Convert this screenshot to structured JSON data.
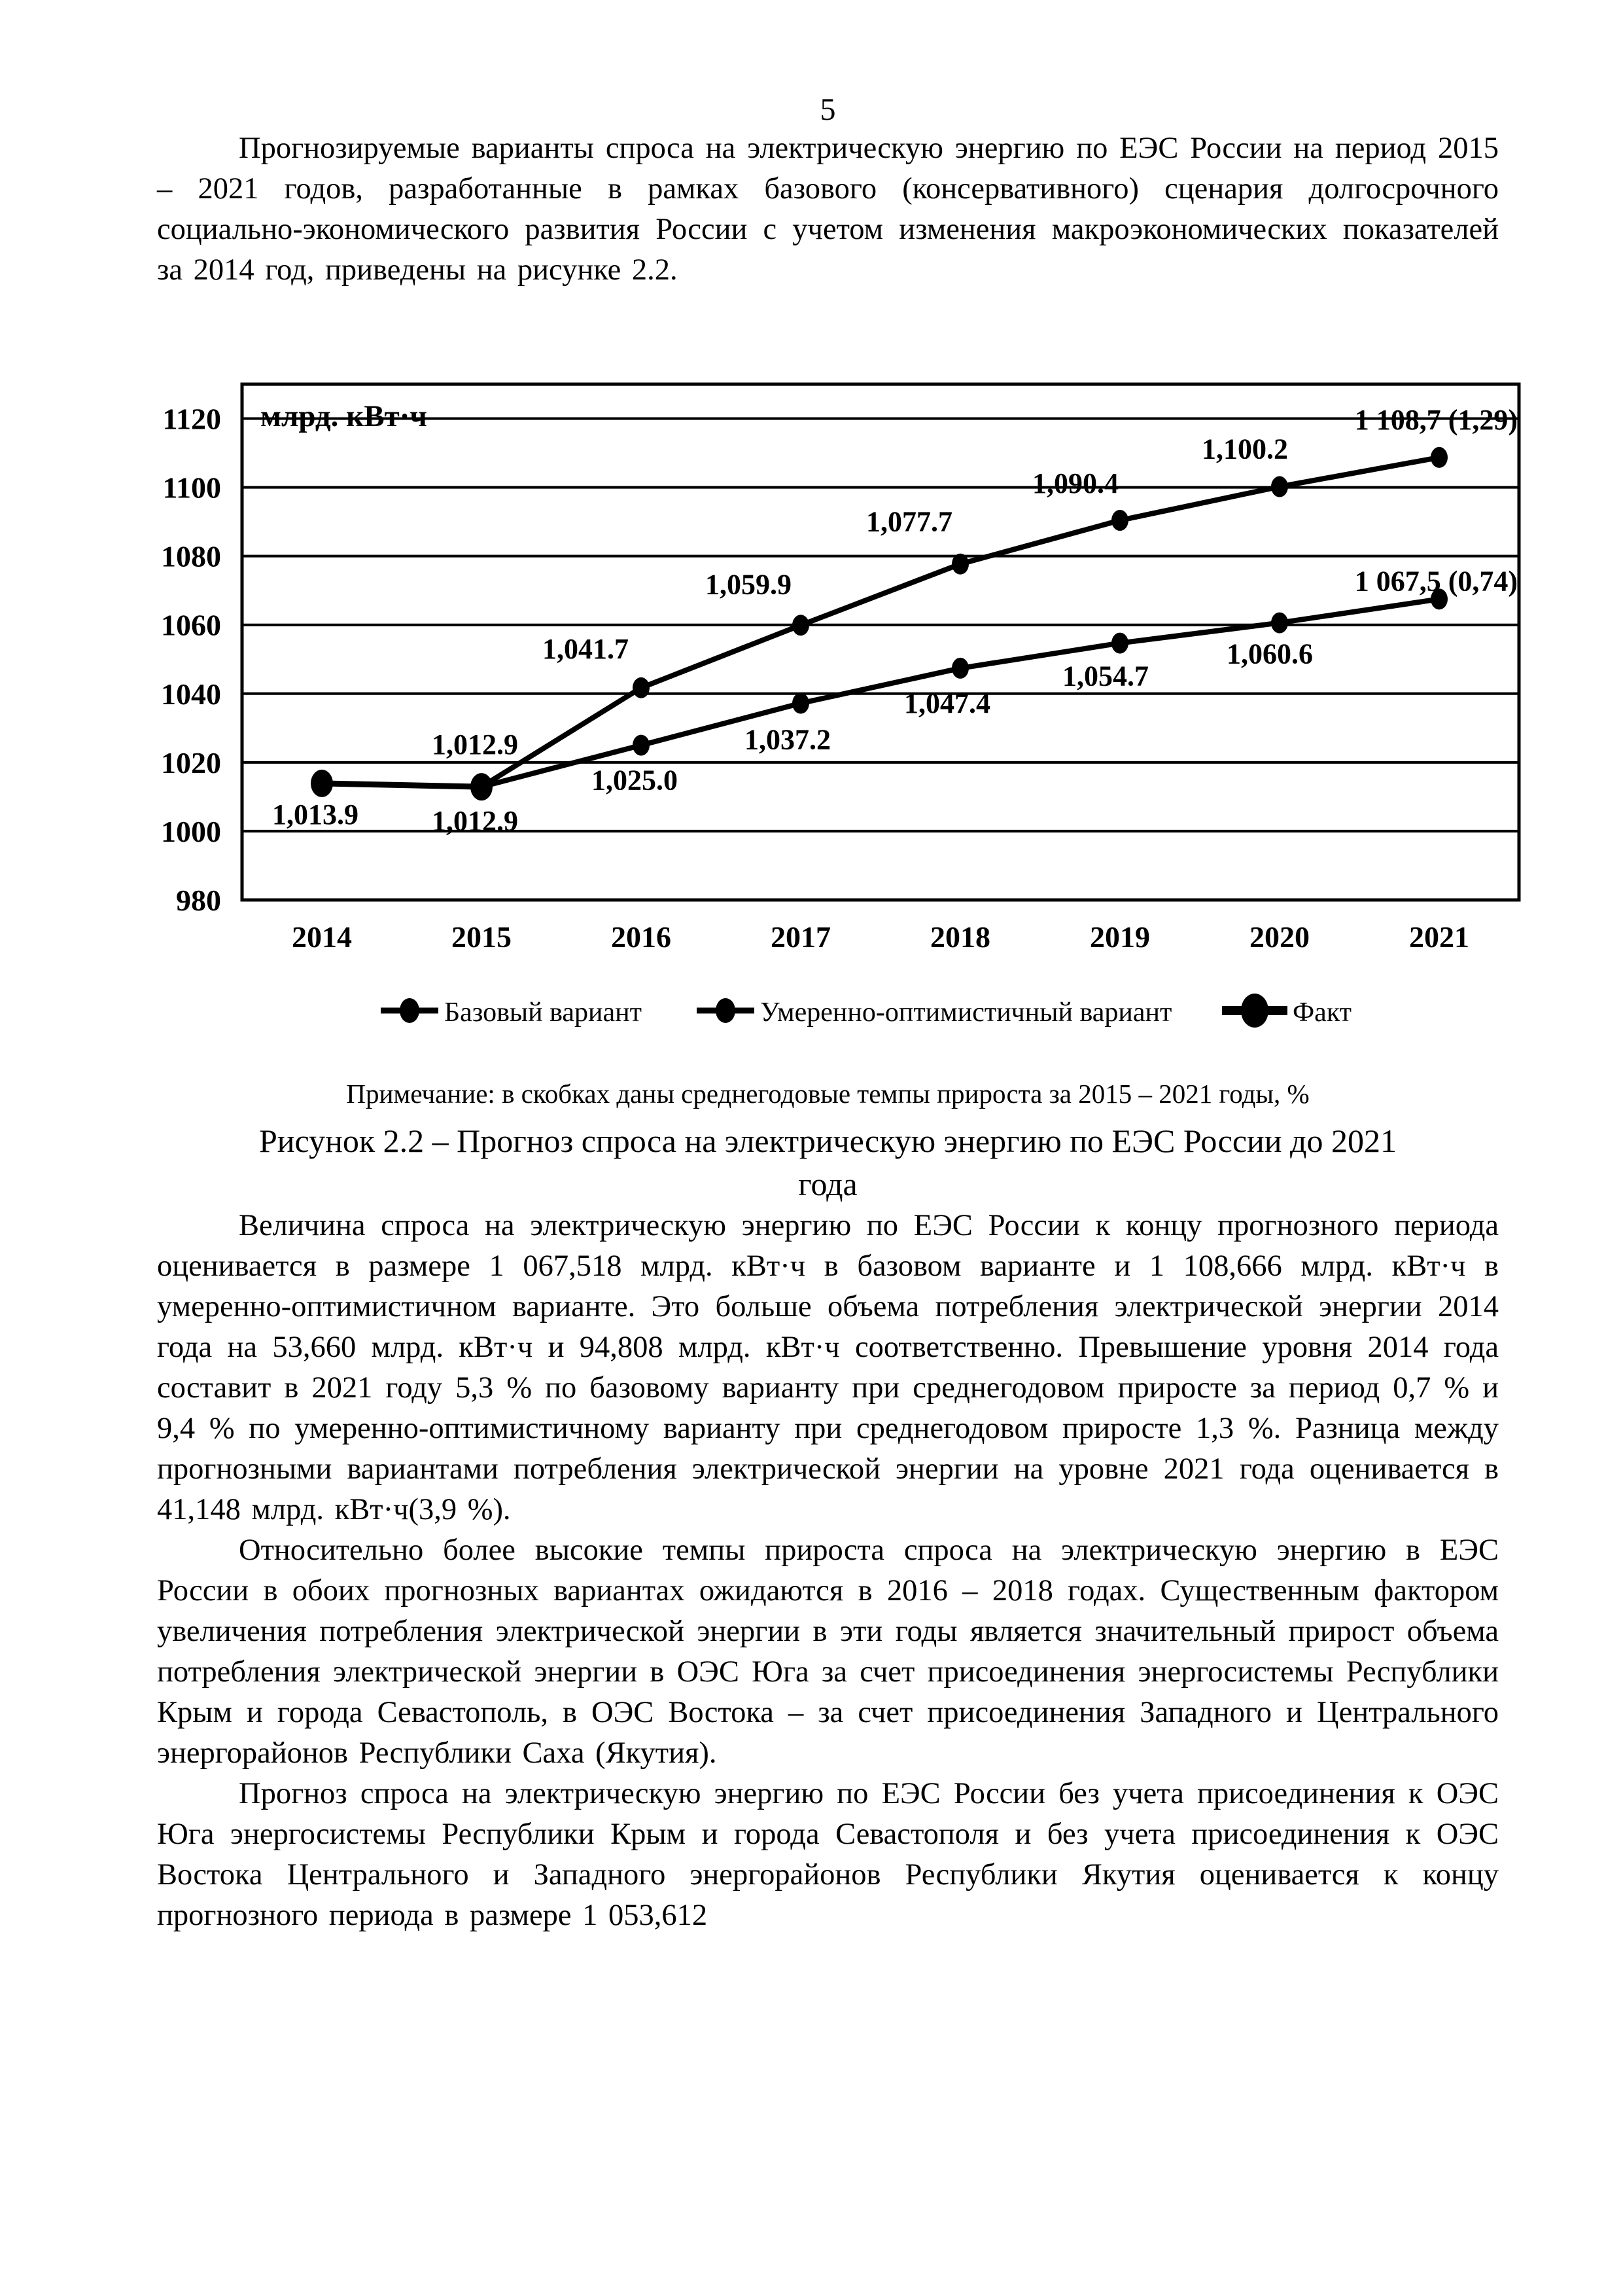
{
  "page": {
    "number": "5"
  },
  "paragraphs": {
    "p1": "Прогнозируемые варианты спроса на электрическую энергию по ЕЭС России на период 2015 – 2021 годов, разработанные в рамках базового (консервативного) сценария долгосрочного социально-экономического развития России с учетом изменения макроэкономических показателей за 2014 год, приведены на рисунке 2.2.",
    "p2": "Величина спроса на электрическую энергию по ЕЭС России к концу прогнозного периода оценивается в размере 1 067,518 млрд. кВт·ч в базовом варианте и 1 108,666 млрд. кВт·ч в умеренно-оптимистичном варианте. Это больше объема потребления электрической энергии 2014 года на 53,660 млрд. кВт·ч и 94,808 млрд. кВт·ч соответственно. Превышение уровня 2014 года составит в 2021 году 5,3 % по базовому варианту при среднегодовом приросте за период 0,7 % и 9,4 % по умеренно-оптимистичному варианту при среднегодовом приросте 1,3 %. Разница между прогнозными вариантами потребления электрической энергии на уровне 2021 года оценивается в 41,148 млрд. кВт·ч(3,9 %).",
    "p3": "Относительно более высокие темпы прироста спроса на электрическую энергию в ЕЭС России в обоих прогнозных вариантах ожидаются в 2016 – 2018 годах. Существенным фактором увеличения потребления электрической энергии в эти годы является значительный прирост объема потребления электрической энергии в ОЭС Юга за счет присоединения энергосистемы Республики Крым и города Севастополь, в ОЭС Востока – за счет присоединения Западного и Центрального энергорайонов Республики Саха (Якутия).",
    "p4": "Прогноз спроса на электрическую энергию по ЕЭС России без учета присоединения к ОЭС Юга энергосистемы Республики Крым и города Севастополя и без учета присоединения к ОЭС Востока Центрального и Западного энергорайонов Республики Якутия оценивается к концу прогнозного периода в размере 1 053,612"
  },
  "figure": {
    "note": "Примечание: в скобках даны среднегодовые темпы прироста за 2015 – 2021 годы, %",
    "caption_line1": "Рисунок 2.2 – Прогноз спроса на электрическую энергию по ЕЭС России до 2021",
    "caption_line2": "года"
  },
  "chart_data": {
    "type": "line",
    "title": "",
    "unit_label": "млрд. кВт·ч",
    "x": [
      2014,
      2015,
      2016,
      2017,
      2018,
      2019,
      2020,
      2021
    ],
    "ylim": [
      980,
      1130
    ],
    "yticks": [
      980,
      1000,
      1020,
      1040,
      1060,
      1080,
      1100,
      1120
    ],
    "grid": "horizontal",
    "legend_position": "bottom",
    "line_color": "#000000",
    "series": [
      {
        "name": "Базовый вариант",
        "line_width": 8,
        "marker_rx": 13,
        "marker_ry": 16,
        "legend_line_width": 9,
        "legend_marker_rx": 15,
        "legend_marker_ry": 19,
        "points": [
          {
            "x": 2015,
            "v": 1012.9,
            "label": "1,012.9",
            "dx": -10,
            "dy": 67
          },
          {
            "x": 2016,
            "v": 1025.0,
            "label": "1,025.0",
            "dx": -10,
            "dy": 68
          },
          {
            "x": 2017,
            "v": 1037.2,
            "label": "1,037.2",
            "dx": -20,
            "dy": 70
          },
          {
            "x": 2018,
            "v": 1047.4,
            "label": "1,047.4",
            "dx": -20,
            "dy": 68
          },
          {
            "x": 2019,
            "v": 1054.7,
            "label": "1,054.7",
            "dx": -22,
            "dy": 65
          },
          {
            "x": 2020,
            "v": 1060.6,
            "label": "1,060.6",
            "dx": -15,
            "dy": 62
          },
          {
            "x": 2021,
            "v": 1067.5,
            "label": "1 067,5 (0,74)",
            "dx": 120,
            "dy": -13,
            "anchor": "end"
          }
        ]
      },
      {
        "name": "Умеренно-оптимистичный вариант",
        "line_width": 8,
        "marker_rx": 13,
        "marker_ry": 16,
        "legend_line_width": 9,
        "legend_marker_rx": 15,
        "legend_marker_ry": 19,
        "points": [
          {
            "x": 2015,
            "v": 1012.9,
            "label": "1,012.9",
            "dx": -10,
            "dy": -50
          },
          {
            "x": 2016,
            "v": 1041.7,
            "label": "1,041.7",
            "dx": -85,
            "dy": -45
          },
          {
            "x": 2017,
            "v": 1059.9,
            "label": "1,059.9",
            "dx": -80,
            "dy": -48
          },
          {
            "x": 2018,
            "v": 1077.7,
            "label": "1,077.7",
            "dx": -78,
            "dy": -50
          },
          {
            "x": 2019,
            "v": 1090.4,
            "label": "1,090.4",
            "dx": -68,
            "dy": -42
          },
          {
            "x": 2020,
            "v": 1100.2,
            "label": "1,100.2",
            "dx": -53,
            "dy": -43
          },
          {
            "x": 2021,
            "v": 1108.7,
            "label": "1 108,7 (1,29)",
            "dx": 120,
            "dy": -43,
            "anchor": "end"
          }
        ]
      },
      {
        "name": "Факт",
        "line_width": 9,
        "marker_rx": 17,
        "marker_ry": 21,
        "legend_line_width": 14,
        "legend_marker_rx": 21,
        "legend_marker_ry": 26,
        "points": [
          {
            "x": 2014,
            "v": 1013.9,
            "label": "1,013.9",
            "dx": -10,
            "dy": 62
          },
          {
            "x": 2015,
            "v": 1012.9,
            "label": "1,012.9",
            "dx": -10,
            "dy": 0,
            "hide": true
          }
        ]
      }
    ]
  }
}
